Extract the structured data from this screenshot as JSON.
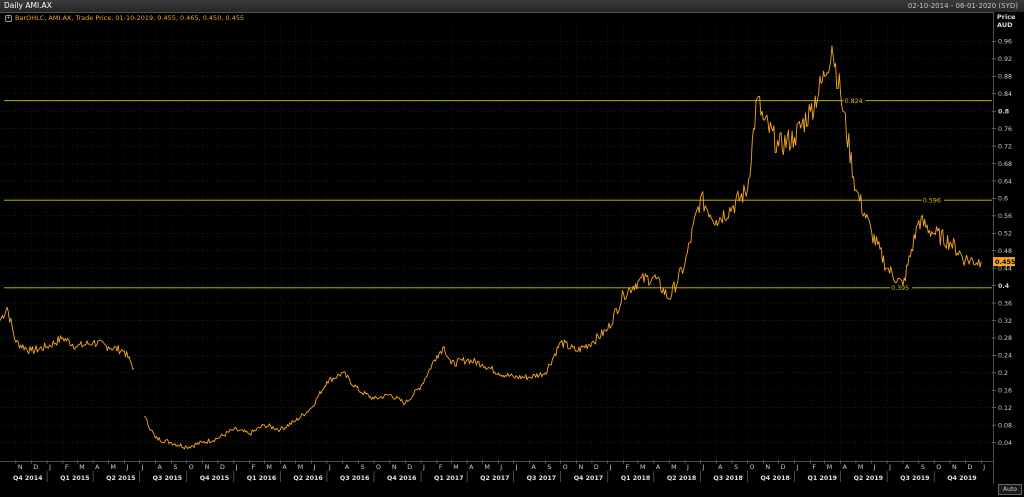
{
  "header": {
    "title": "Daily AMI.AX",
    "date_range": "02-10-2014 - 06-01-2020 (SYD)"
  },
  "legend": {
    "text": "BarOHLC, AMI.AX, Trade Price, 01-10-2019, 0.455, 0.465, 0.450, 0.455"
  },
  "axis": {
    "price_label": "Price",
    "currency_label": "AUD",
    "auto_label": "Auto"
  },
  "colors": {
    "price": "#f5a623",
    "hline": "#d4c800",
    "background": "#000000",
    "grid": "#2a2a2a"
  },
  "chart_data": {
    "type": "line",
    "ylim": [
      0,
      1.0
    ],
    "yticks": [
      "0.04",
      "0.08",
      "0.12",
      "0.16",
      "0.2",
      "0.24",
      "0.28",
      "0.32",
      "0.36",
      "0.4",
      "0.44",
      "0.48",
      "0.52",
      "0.56",
      "0.6",
      "0.64",
      "0.68",
      "0.72",
      "0.76",
      "0.8",
      "0.84",
      "0.88",
      "0.92",
      "0.96"
    ],
    "current_price": "0.455",
    "hlines": [
      {
        "value": 0.824,
        "label": "0.824",
        "label_date": "2019-04"
      },
      {
        "value": 0.596,
        "label": "0.596",
        "label_date": "2019-09"
      },
      {
        "value": 0.395,
        "label": "0.395",
        "label_date": "2019-07"
      }
    ],
    "month_labels": [
      "N",
      "D",
      "J",
      "F",
      "M",
      "A",
      "M",
      "J",
      "J",
      "A",
      "S",
      "O",
      "N",
      "D",
      "J",
      "F",
      "M",
      "A",
      "M",
      "J",
      "J",
      "A",
      "S",
      "O",
      "N",
      "D",
      "J",
      "F",
      "M",
      "A",
      "M",
      "J",
      "J",
      "A",
      "S",
      "O",
      "N",
      "D",
      "J",
      "F",
      "M",
      "A",
      "M",
      "J",
      "J",
      "A",
      "S",
      "O",
      "N",
      "D",
      "J",
      "F",
      "M",
      "A",
      "M",
      "J",
      "J",
      "A",
      "S",
      "O",
      "N",
      "D",
      "J",
      "F",
      "M",
      "A",
      "M",
      "J",
      "J",
      "A",
      "S",
      "O",
      "N",
      "D",
      "J"
    ],
    "quarter_labels": [
      "Q4 2014",
      "Q1 2015",
      "Q2 2015",
      "Q3 2015",
      "Q4 2015",
      "Q1 2016",
      "Q2 2016",
      "Q3 2016",
      "Q4 2016",
      "Q1 2017",
      "Q2 2017",
      "Q3 2017",
      "Q4 2017",
      "Q1 2018",
      "Q2 2018",
      "Q3 2018",
      "Q4 2018",
      "Q1 2019",
      "Q2 2019",
      "Q3 2019",
      "Q4 2019"
    ],
    "series": [
      {
        "x": [
          "2014-10",
          "2014-10-15",
          "2014-11",
          "2014-12",
          "2015-01",
          "2015-02",
          "2015-03",
          "2015-04",
          "2015-05",
          "2015-06",
          "2015-06-20",
          "2015-07",
          "2015-07-10",
          "2015-08",
          "2015-09",
          "2015-10",
          "2015-11",
          "2015-12",
          "2016-01",
          "2016-02",
          "2016-03",
          "2016-04",
          "2016-05",
          "2016-06",
          "2016-07",
          "2016-08",
          "2016-09",
          "2016-10",
          "2016-11",
          "2016-12",
          "2017-01",
          "2017-02",
          "2017-02-15",
          "2017-03",
          "2017-04",
          "2017-05",
          "2017-06",
          "2017-07",
          "2017-08",
          "2017-09",
          "2017-10",
          "2017-11",
          "2017-12",
          "2018-01",
          "2018-02",
          "2018-03",
          "2018-04",
          "2018-05",
          "2018-06",
          "2018-07",
          "2018-08",
          "2018-09",
          "2018-10",
          "2018-10-20",
          "2018-11",
          "2018-12",
          "2019-01",
          "2019-02",
          "2019-03",
          "2019-03-15",
          "2019-04",
          "2019-05",
          "2019-06",
          "2019-07",
          "2019-08",
          "2019-09",
          "2019-10",
          "2019-11",
          "2019-12",
          "2020-01"
        ],
        "values": [
          0.32,
          0.35,
          0.27,
          0.25,
          0.26,
          0.28,
          0.26,
          0.27,
          0.26,
          0.25,
          0.21,
          null,
          0.1,
          0.05,
          0.04,
          0.03,
          0.04,
          0.05,
          0.07,
          0.06,
          0.08,
          0.07,
          0.09,
          0.12,
          0.18,
          0.2,
          0.16,
          0.14,
          0.15,
          0.13,
          0.17,
          0.24,
          0.26,
          0.22,
          0.23,
          0.22,
          0.2,
          0.19,
          0.19,
          0.2,
          0.27,
          0.25,
          0.27,
          0.3,
          0.38,
          0.41,
          0.42,
          0.37,
          0.45,
          0.6,
          0.55,
          0.58,
          0.62,
          0.83,
          0.78,
          0.72,
          0.74,
          0.8,
          0.88,
          0.95,
          0.84,
          0.62,
          0.52,
          0.44,
          0.4,
          0.55,
          0.52,
          0.5,
          0.46,
          0.455
        ]
      }
    ]
  }
}
